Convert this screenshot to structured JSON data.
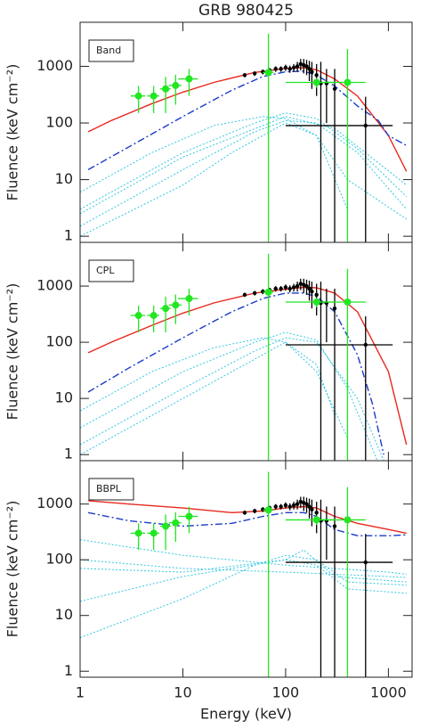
{
  "chart_data": [
    {
      "type": "line",
      "title": "GRB 980425",
      "label": "Band",
      "ylabel": "Fluence (keV cm⁻²)",
      "xlim": [
        1,
        1700
      ],
      "ylim": [
        0.78,
        6000
      ],
      "xticks": [
        1,
        10,
        100,
        1000
      ],
      "yticks": [
        1,
        10,
        100,
        1000
      ],
      "log_x": true,
      "log_y": true,
      "xtick_labels": false,
      "series": [
        {
          "style": "dotted",
          "color": "#33c8e0",
          "x": [
            1,
            10,
            50,
            100,
            200,
            500,
            1500
          ],
          "values": [
            1.5,
            15,
            70,
            110,
            100,
            30,
            3
          ]
        },
        {
          "style": "dotted",
          "color": "#33c8e0",
          "x": [
            1,
            10,
            50,
            100,
            200,
            500,
            1500
          ],
          "values": [
            3,
            30,
            100,
            150,
            120,
            35,
            5
          ]
        },
        {
          "style": "dotted",
          "color": "#33c8e0",
          "x": [
            1,
            10,
            30,
            100,
            200,
            400
          ],
          "values": [
            1,
            8,
            30,
            100,
            60,
            3
          ]
        },
        {
          "style": "dotted",
          "color": "#33c8e0",
          "x": [
            1,
            5,
            20,
            60,
            100,
            200,
            400,
            1500
          ],
          "values": [
            6,
            30,
            90,
            130,
            120,
            60,
            10,
            2
          ]
        },
        {
          "style": "dotted",
          "color": "#33c8e0",
          "x": [
            1,
            10,
            100,
            300,
            1500
          ],
          "values": [
            2.5,
            25,
            130,
            80,
            8
          ]
        },
        {
          "style": "solid",
          "color": "#e8281e",
          "x": [
            1.2,
            2,
            5,
            10,
            20,
            50,
            100,
            150,
            200,
            300,
            500,
            1000,
            1500
          ],
          "values": [
            70,
            110,
            220,
            350,
            520,
            780,
            920,
            950,
            870,
            600,
            300,
            60,
            14
          ]
        },
        {
          "style": "dashdot",
          "color": "#1a3cc8",
          "x": [
            1.2,
            3,
            10,
            30,
            60,
            100,
            150,
            200,
            300,
            500,
            800,
            1000,
            1500
          ],
          "values": [
            15,
            38,
            130,
            380,
            660,
            800,
            820,
            700,
            450,
            200,
            110,
            60,
            40
          ]
        },
        {
          "style": "points",
          "color": "#000000",
          "x": [
            40,
            50,
            60,
            70,
            80,
            90,
            100,
            110,
            120,
            130,
            140,
            150,
            160,
            170,
            180,
            200,
            220,
            250,
            300,
            600
          ],
          "values": [
            700,
            750,
            800,
            850,
            900,
            900,
            950,
            900,
            950,
            1000,
            1100,
            1050,
            1000,
            900,
            800,
            700,
            500,
            500,
            400,
            90
          ],
          "yerr": [
            60,
            70,
            80,
            80,
            100,
            100,
            120,
            130,
            150,
            200,
            250,
            300,
            300,
            350,
            400,
            400,
            700,
            400,
            500,
            200
          ],
          "xerr": [
            0,
            0,
            0,
            0,
            0,
            0,
            0,
            0,
            0,
            0,
            0,
            0,
            0,
            0,
            0,
            0,
            0,
            0,
            0,
            500
          ]
        },
        {
          "style": "points",
          "color": "#22e622",
          "x": [
            3.7,
            5.2,
            6.8,
            8.5,
            11.5,
            68,
            200,
            400
          ],
          "values": [
            300,
            300,
            400,
            460,
            600,
            780,
            520,
            520
          ],
          "yerr": [
            150,
            150,
            250,
            250,
            300,
            3000,
            100,
            1500
          ],
          "xerr": [
            0.6,
            0.7,
            0.8,
            1.2,
            2.5,
            8,
            100,
            200
          ]
        }
      ]
    },
    {
      "type": "line",
      "label": "CPL",
      "ylabel": "Fluence (keV cm⁻²)",
      "xlim": [
        1,
        1700
      ],
      "ylim": [
        0.78,
        6000
      ],
      "xticks": [
        1,
        10,
        100,
        1000
      ],
      "yticks": [
        1,
        10,
        100,
        1000
      ],
      "log_x": true,
      "log_y": true,
      "xtick_labels": false,
      "series": [
        {
          "style": "dotted",
          "color": "#33c8e0",
          "x": [
            1,
            10,
            50,
            100,
            200,
            500,
            1000
          ],
          "values": [
            1.5,
            15,
            70,
            120,
            100,
            10,
            0.5
          ]
        },
        {
          "style": "dotted",
          "color": "#33c8e0",
          "x": [
            1,
            10,
            50,
            100,
            200,
            400,
            800
          ],
          "values": [
            3,
            30,
            100,
            150,
            110,
            15,
            0.7
          ]
        },
        {
          "style": "dotted",
          "color": "#33c8e0",
          "x": [
            1,
            5,
            20,
            60,
            100,
            200,
            400
          ],
          "values": [
            6,
            30,
            80,
            120,
            100,
            30,
            2
          ]
        },
        {
          "style": "dotted",
          "color": "#33c8e0",
          "x": [
            1,
            10,
            100,
            200,
            300
          ],
          "values": [
            1,
            10,
            100,
            40,
            5
          ]
        },
        {
          "style": "solid",
          "color": "#e8281e",
          "x": [
            1.2,
            2,
            5,
            10,
            20,
            50,
            100,
            150,
            200,
            300,
            500,
            1000,
            1500
          ],
          "values": [
            65,
            100,
            200,
            330,
            500,
            750,
            880,
            950,
            930,
            750,
            350,
            30,
            1.5
          ]
        },
        {
          "style": "dashdot",
          "color": "#1a3cc8",
          "x": [
            1.2,
            3,
            10,
            30,
            60,
            100,
            150,
            200,
            300,
            500,
            700,
            900
          ],
          "values": [
            13,
            35,
            120,
            350,
            600,
            750,
            750,
            650,
            350,
            60,
            8,
            1
          ]
        },
        {
          "style": "points",
          "color": "#000000",
          "x": [
            40,
            50,
            60,
            70,
            80,
            90,
            100,
            110,
            120,
            130,
            140,
            150,
            160,
            170,
            180,
            200,
            220,
            250,
            300,
            600
          ],
          "values": [
            700,
            750,
            800,
            850,
            900,
            900,
            950,
            900,
            950,
            1000,
            1100,
            1050,
            1000,
            900,
            800,
            700,
            500,
            500,
            400,
            90
          ],
          "yerr": [
            60,
            70,
            80,
            80,
            100,
            100,
            120,
            130,
            150,
            200,
            250,
            300,
            300,
            350,
            400,
            400,
            700,
            400,
            500,
            200
          ],
          "xerr": [
            0,
            0,
            0,
            0,
            0,
            0,
            0,
            0,
            0,
            0,
            0,
            0,
            0,
            0,
            0,
            0,
            0,
            0,
            0,
            500
          ]
        },
        {
          "style": "points",
          "color": "#22e622",
          "x": [
            3.7,
            5.2,
            6.8,
            8.5,
            11.5,
            68,
            200,
            400
          ],
          "values": [
            300,
            300,
            400,
            460,
            600,
            780,
            520,
            520
          ],
          "yerr": [
            150,
            150,
            250,
            250,
            300,
            3000,
            100,
            1500
          ],
          "xerr": [
            0.6,
            0.7,
            0.8,
            1.2,
            2.5,
            8,
            100,
            200
          ]
        }
      ]
    },
    {
      "type": "line",
      "label": "BBPL",
      "ylabel": "Fluence (keV cm⁻²)",
      "xlabel": "Energy (keV)",
      "xlim": [
        1,
        1700
      ],
      "ylim": [
        0.78,
        6000
      ],
      "xticks": [
        1,
        10,
        100,
        1000
      ],
      "yticks": [
        1,
        10,
        100,
        1000
      ],
      "log_x": true,
      "log_y": true,
      "xtick_labels": true,
      "series": [
        {
          "style": "dotted",
          "color": "#33c8e0",
          "x": [
            1,
            10,
            100,
            1000,
            1500
          ],
          "values": [
            230,
            120,
            80,
            60,
            55
          ]
        },
        {
          "style": "dotted",
          "color": "#33c8e0",
          "x": [
            1,
            10,
            100,
            1000,
            1500
          ],
          "values": [
            100,
            70,
            60,
            50,
            48
          ]
        },
        {
          "style": "dotted",
          "color": "#33c8e0",
          "x": [
            1,
            10,
            100,
            200,
            400,
            1500
          ],
          "values": [
            18,
            50,
            100,
            80,
            30,
            25
          ]
        },
        {
          "style": "dotted",
          "color": "#33c8e0",
          "x": [
            1,
            10,
            50,
            100,
            200,
            400,
            1500
          ],
          "values": [
            4,
            20,
            80,
            120,
            100,
            40,
            35
          ]
        },
        {
          "style": "dotted",
          "color": "#33c8e0",
          "x": [
            1,
            10,
            100,
            150,
            300,
            1500
          ],
          "values": [
            70,
            60,
            100,
            150,
            50,
            40
          ]
        },
        {
          "style": "solid",
          "color": "#e8281e",
          "x": [
            1.2,
            3,
            10,
            30,
            60,
            100,
            150,
            200,
            300,
            500,
            1000,
            1500
          ],
          "values": [
            1150,
            1000,
            850,
            700,
            750,
            850,
            900,
            850,
            600,
            450,
            350,
            300
          ]
        },
        {
          "style": "dashdot",
          "color": "#1a3cc8",
          "x": [
            1.2,
            3,
            10,
            30,
            60,
            100,
            150,
            200,
            300,
            500,
            1000,
            1500
          ],
          "values": [
            700,
            500,
            400,
            450,
            600,
            700,
            700,
            600,
            350,
            270,
            270,
            280
          ]
        },
        {
          "style": "points",
          "color": "#000000",
          "x": [
            40,
            50,
            60,
            70,
            80,
            90,
            100,
            110,
            120,
            130,
            140,
            150,
            160,
            170,
            180,
            200,
            220,
            250,
            300,
            600
          ],
          "values": [
            700,
            750,
            800,
            850,
            900,
            900,
            950,
            900,
            950,
            1000,
            1100,
            1050,
            1000,
            900,
            800,
            700,
            500,
            500,
            400,
            90
          ],
          "yerr": [
            60,
            70,
            80,
            80,
            100,
            100,
            120,
            130,
            150,
            200,
            250,
            300,
            300,
            350,
            400,
            400,
            700,
            400,
            500,
            200
          ],
          "xerr": [
            0,
            0,
            0,
            0,
            0,
            0,
            0,
            0,
            0,
            0,
            0,
            0,
            0,
            0,
            0,
            0,
            0,
            0,
            0,
            500
          ]
        },
        {
          "style": "points",
          "color": "#22e622",
          "x": [
            3.7,
            5.2,
            6.8,
            8.5,
            11.5,
            68,
            200,
            400
          ],
          "values": [
            300,
            300,
            400,
            460,
            600,
            780,
            520,
            520
          ],
          "yerr": [
            150,
            150,
            250,
            250,
            300,
            3000,
            100,
            1500
          ],
          "xerr": [
            0.6,
            0.7,
            0.8,
            1.2,
            2.5,
            8,
            100,
            200
          ]
        }
      ]
    }
  ]
}
